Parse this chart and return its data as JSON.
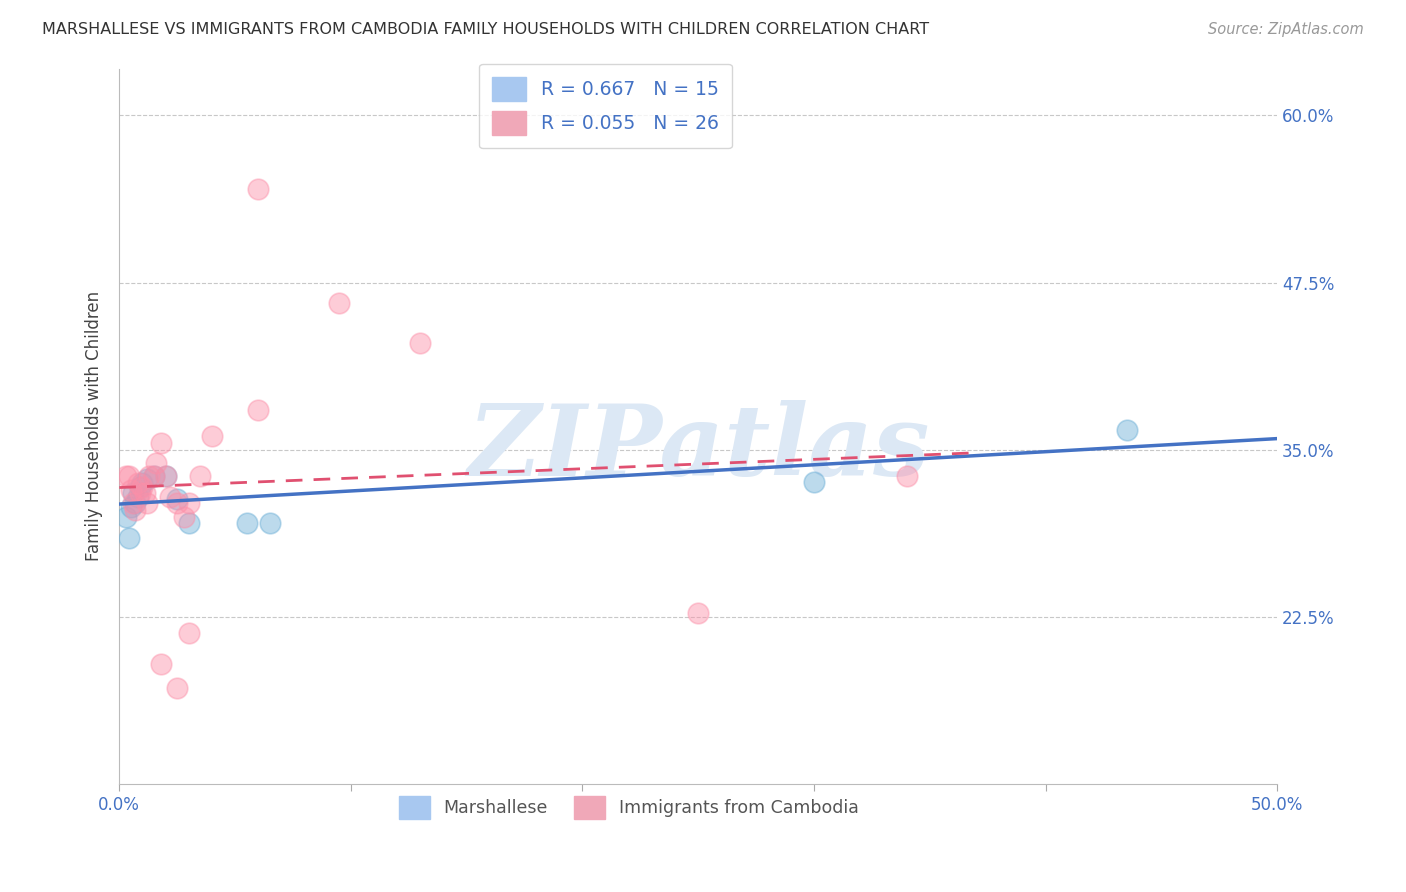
{
  "title": "MARSHALLESE VS IMMIGRANTS FROM CAMBODIA FAMILY HOUSEHOLDS WITH CHILDREN CORRELATION CHART",
  "source": "Source: ZipAtlas.com",
  "ylabel": "Family Households with Children",
  "x_min": 0.0,
  "x_max": 0.5,
  "y_min": 0.1,
  "y_max": 0.635,
  "x_ticks": [
    0.0,
    0.1,
    0.2,
    0.3,
    0.4,
    0.5
  ],
  "x_tick_labels": [
    "0.0%",
    "",
    "",
    "",
    "",
    "50.0%"
  ],
  "y_ticks": [
    0.225,
    0.35,
    0.475,
    0.6
  ],
  "y_tick_labels": [
    "22.5%",
    "35.0%",
    "47.5%",
    "60.0%"
  ],
  "marshallese_points": [
    [
      0.003,
      0.3
    ],
    [
      0.004,
      0.284
    ],
    [
      0.005,
      0.307
    ],
    [
      0.006,
      0.318
    ],
    [
      0.007,
      0.31
    ],
    [
      0.008,
      0.315
    ],
    [
      0.009,
      0.322
    ],
    [
      0.01,
      0.325
    ],
    [
      0.012,
      0.328
    ],
    [
      0.015,
      0.33
    ],
    [
      0.02,
      0.33
    ],
    [
      0.025,
      0.313
    ],
    [
      0.03,
      0.295
    ],
    [
      0.055,
      0.295
    ],
    [
      0.065,
      0.295
    ],
    [
      0.3,
      0.326
    ],
    [
      0.435,
      0.365
    ]
  ],
  "cambodia_points": [
    [
      0.003,
      0.33
    ],
    [
      0.004,
      0.33
    ],
    [
      0.005,
      0.32
    ],
    [
      0.006,
      0.31
    ],
    [
      0.007,
      0.305
    ],
    [
      0.008,
      0.325
    ],
    [
      0.009,
      0.318
    ],
    [
      0.01,
      0.322
    ],
    [
      0.011,
      0.318
    ],
    [
      0.012,
      0.31
    ],
    [
      0.013,
      0.33
    ],
    [
      0.015,
      0.33
    ],
    [
      0.016,
      0.34
    ],
    [
      0.018,
      0.355
    ],
    [
      0.02,
      0.33
    ],
    [
      0.022,
      0.315
    ],
    [
      0.025,
      0.31
    ],
    [
      0.028,
      0.3
    ],
    [
      0.03,
      0.31
    ],
    [
      0.035,
      0.33
    ],
    [
      0.04,
      0.36
    ],
    [
      0.06,
      0.38
    ],
    [
      0.095,
      0.46
    ],
    [
      0.13,
      0.43
    ],
    [
      0.25,
      0.228
    ],
    [
      0.34,
      0.33
    ],
    [
      0.06,
      0.545
    ],
    [
      0.03,
      0.213
    ],
    [
      0.018,
      0.19
    ],
    [
      0.025,
      0.172
    ]
  ],
  "marshallese_color": "#6baed6",
  "cambodia_color": "#fc8fa8",
  "marshallese_line_color": "#4472c4",
  "cambodia_line_color": "#e05070",
  "watermark_text": "ZIPatlas",
  "watermark_color": "#dce8f5",
  "background_color": "#ffffff"
}
